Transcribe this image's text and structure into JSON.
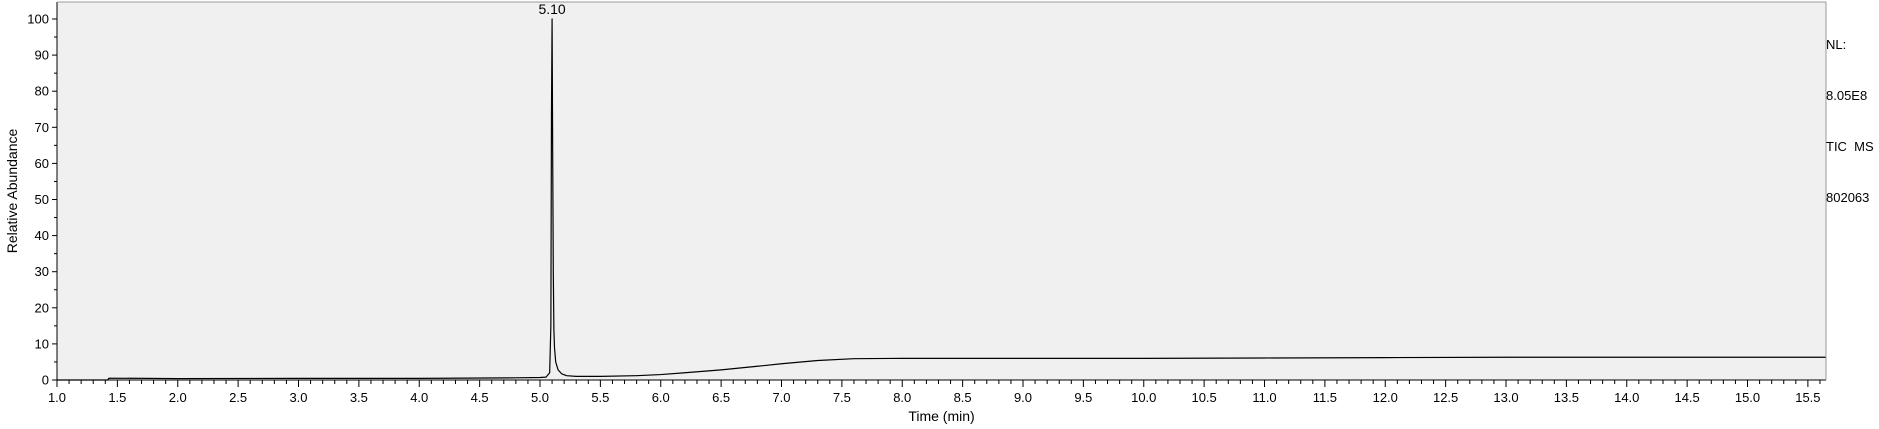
{
  "chart_data": {
    "type": "line",
    "title": "",
    "xlabel": "Time (min)",
    "ylabel": "Relative Abundance",
    "xlim": [
      1.0,
      15.65
    ],
    "ylim": [
      0,
      100
    ],
    "x_ticks": [
      "1.0",
      "1.5",
      "2.0",
      "2.5",
      "3.0",
      "3.5",
      "4.0",
      "4.5",
      "5.0",
      "5.5",
      "6.0",
      "6.5",
      "7.0",
      "7.5",
      "8.0",
      "8.5",
      "9.0",
      "9.5",
      "10.0",
      "10.5",
      "11.0",
      "11.5",
      "12.0",
      "12.5",
      "13.0",
      "13.5",
      "14.0",
      "14.5",
      "15.0",
      "15.5"
    ],
    "y_ticks": [
      "0",
      "10",
      "20",
      "30",
      "40",
      "50",
      "60",
      "70",
      "80",
      "90",
      "100"
    ],
    "grid": false,
    "legend": "none",
    "colors": {
      "plot_background": "#f0f0f0",
      "trace": "#000000"
    },
    "annotations": [
      {
        "text": "5.10",
        "x": 5.1,
        "y": 100
      }
    ],
    "info": {
      "nl_label": "NL:",
      "nl_value": "8.05E8",
      "scan": "TIC  MS",
      "sample": "802063"
    },
    "series": [
      {
        "x": [
          1.0,
          1.3,
          1.42,
          1.43,
          2.0,
          3.0,
          4.0,
          4.8,
          5.0,
          5.05,
          5.08,
          5.09,
          5.095,
          5.1,
          5.105,
          5.11,
          5.115,
          5.12,
          5.13,
          5.15,
          5.18,
          5.22,
          5.3,
          5.5,
          5.8,
          6.0,
          6.2,
          6.5,
          6.8,
          7.0,
          7.3,
          7.6,
          8.0,
          9.0,
          10.0,
          11.0,
          12.0,
          13.0,
          14.0,
          15.0,
          15.65
        ],
        "y": [
          0.0,
          0.0,
          0.0,
          0.5,
          0.4,
          0.45,
          0.45,
          0.6,
          0.7,
          0.8,
          2,
          15,
          74,
          100,
          63,
          30,
          14,
          9,
          5,
          2.8,
          1.7,
          1.2,
          1.0,
          1.0,
          1.2,
          1.5,
          2.0,
          2.8,
          3.8,
          4.5,
          5.4,
          5.9,
          6.0,
          6.0,
          6.0,
          6.1,
          6.2,
          6.3,
          6.3,
          6.3,
          6.3
        ]
      }
    ]
  }
}
